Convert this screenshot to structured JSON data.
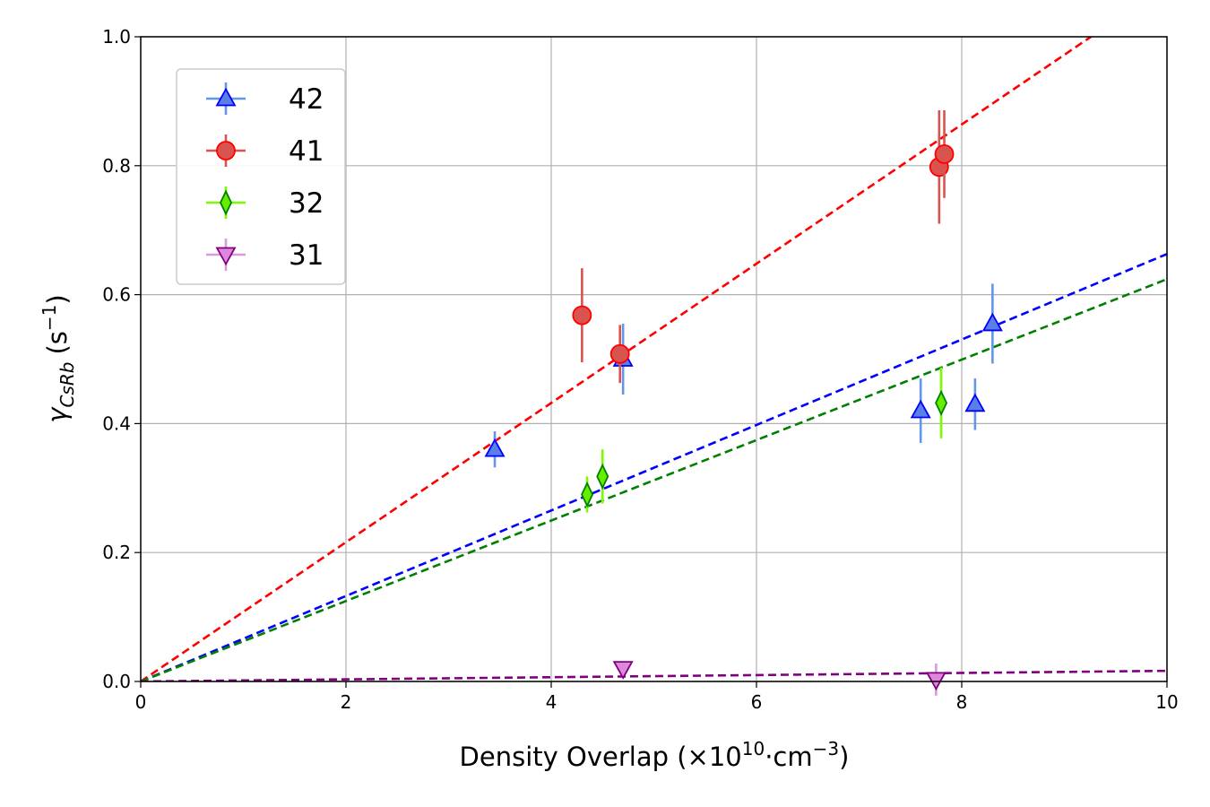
{
  "chart_data": {
    "type": "scatter",
    "xlabel_main": "Density Overlap (×10",
    "xlabel_sup": "10",
    "xlabel_dot": "·cm",
    "xlabel_sup2": "−3",
    "xlabel_close": ")",
    "ylabel_gamma": "γ",
    "ylabel_sub": "CsRb",
    "ylabel_unit": "(s",
    "ylabel_sup": "−1",
    "ylabel_close": ")",
    "xlim": [
      0,
      10
    ],
    "ylim": [
      0,
      1.0
    ],
    "xticks": [
      "0",
      "2",
      "4",
      "6",
      "8",
      "10"
    ],
    "yticks": [
      "0.0",
      "0.2",
      "0.4",
      "0.6",
      "0.8",
      "1.0"
    ],
    "grid": true,
    "legend_position": "top-left",
    "series": [
      {
        "name": "42",
        "marker": "triangle-up",
        "face_color": "#5b7fe8",
        "edge_color": "#0000ff",
        "errorbar_color": "#6495ed",
        "fit_color": "#0000ff",
        "fit_slope": 0.0663,
        "points": [
          {
            "x": 3.45,
            "y": 0.36,
            "err": 0.028
          },
          {
            "x": 4.7,
            "y": 0.5,
            "err": 0.055
          },
          {
            "x": 7.6,
            "y": 0.42,
            "err": 0.05
          },
          {
            "x": 8.13,
            "y": 0.43,
            "err": 0.04
          },
          {
            "x": 8.3,
            "y": 0.555,
            "err": 0.062
          }
        ]
      },
      {
        "name": "41",
        "marker": "circle",
        "face_color": "#d9534f",
        "edge_color": "#ff0000",
        "errorbar_color": "#d9534f",
        "fit_color": "#ff0000",
        "fit_slope": 0.108,
        "points": [
          {
            "x": 4.3,
            "y": 0.568,
            "err": 0.073
          },
          {
            "x": 4.67,
            "y": 0.508,
            "err": 0.045
          },
          {
            "x": 7.78,
            "y": 0.798,
            "err": 0.088
          },
          {
            "x": 7.83,
            "y": 0.818,
            "err": 0.068
          }
        ]
      },
      {
        "name": "32",
        "marker": "thin-diamond",
        "face_color": "#66ee00",
        "edge_color": "#008000",
        "errorbar_color": "#7cfc00",
        "fit_color": "#008000",
        "fit_slope": 0.0624,
        "points": [
          {
            "x": 4.35,
            "y": 0.29,
            "err": 0.028
          },
          {
            "x": 4.5,
            "y": 0.318,
            "err": 0.042
          },
          {
            "x": 7.8,
            "y": 0.432,
            "err": 0.055
          }
        ]
      },
      {
        "name": "31",
        "marker": "triangle-down",
        "face_color": "#dd88dd",
        "edge_color": "#800080",
        "errorbar_color": "#dd99dd",
        "fit_color": "#800080",
        "fit_slope": 0.00165,
        "points": [
          {
            "x": 4.7,
            "y": 0.02,
            "err": 0.01
          },
          {
            "x": 7.75,
            "y": 0.003,
            "err": 0.025
          }
        ]
      }
    ]
  }
}
